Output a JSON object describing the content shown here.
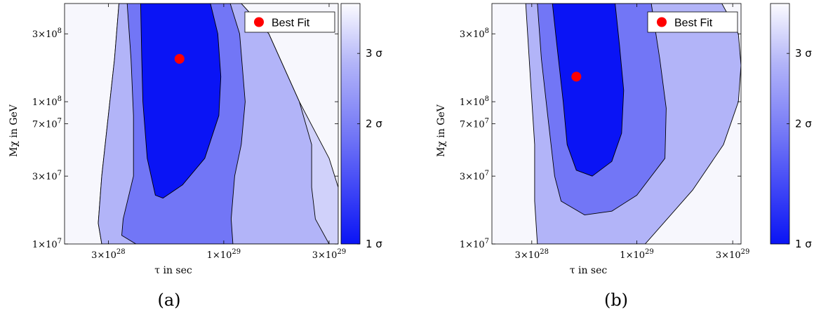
{
  "colors": {
    "level_1": "#0a14f5",
    "level_2": "#7276f6",
    "level_3": "#b2b4f8",
    "level_4": "#d0d1fa",
    "background": "#f7f7fd",
    "best_fit": "#ff0000"
  },
  "chart_data": [
    {
      "type": "contour",
      "caption": "(a)",
      "xlabel": "τ in sec",
      "ylabel": "Mχ in GeV",
      "x_scale": "log",
      "y_scale": "log",
      "xlim": [
        1.9e+28,
        3.3e+29
      ],
      "ylim": [
        10000000.0,
        490000000.0
      ],
      "x_ticks": [
        {
          "value": 3e+28,
          "mantissa": "3×10",
          "exp": "28"
        },
        {
          "value": 1e+29,
          "mantissa": "1×10",
          "exp": "29"
        },
        {
          "value": 3e+29,
          "mantissa": "3×10",
          "exp": "29"
        }
      ],
      "y_ticks": [
        {
          "value": 10000000.0,
          "mantissa": "1×10",
          "exp": "7"
        },
        {
          "value": 30000000.0,
          "mantissa": "3×10",
          "exp": "7"
        },
        {
          "value": 70000000.0,
          "mantissa": "7×10",
          "exp": "7"
        },
        {
          "value": 100000000.0,
          "mantissa": "1×10",
          "exp": "8"
        },
        {
          "value": 300000000.0,
          "mantissa": "3×10",
          "exp": "8"
        }
      ],
      "colorbar": {
        "labels": [
          "1 σ",
          "2 σ",
          "3 σ"
        ],
        "values": [
          1,
          2,
          3
        ],
        "range": [
          1,
          4
        ]
      },
      "legend": {
        "label": "Best Fit",
        "position": "top-right"
      },
      "best_fit": {
        "x": 6.3e+28,
        "y": 200000000.0
      },
      "contours": [
        {
          "level": 4,
          "points": [
            [
              2.8e+28,
              10000000.0
            ],
            [
              2.7e+28,
              14000000.0
            ],
            [
              2.8e+28,
              30000000.0
            ],
            [
              3e+28,
              80000000.0
            ],
            [
              3.2e+28,
              200000000.0
            ],
            [
              3.35e+28,
              490000000.0
            ],
            [
              1.2e+29,
              490000000.0
            ],
            [
              1.6e+29,
              300000000.0
            ],
            [
              2.2e+29,
              100000000.0
            ],
            [
              3e+29,
              40000000.0
            ],
            [
              3.3e+29,
              25000000.0
            ],
            [
              3.3e+29,
              10000000.0
            ]
          ]
        },
        {
          "level": 3,
          "points": [
            [
              2.8e+28,
              10000000.0
            ],
            [
              2.7e+28,
              14000000.0
            ],
            [
              2.8e+28,
              30000000.0
            ],
            [
              3e+28,
              80000000.0
            ],
            [
              3.2e+28,
              200000000.0
            ],
            [
              3.35e+28,
              490000000.0
            ],
            [
              1.2e+29,
              490000000.0
            ],
            [
              1.6e+29,
              300000000.0
            ],
            [
              2.2e+29,
              100000000.0
            ],
            [
              2.5e+29,
              50000000.0
            ],
            [
              2.5e+29,
              25000000.0
            ],
            [
              2.6e+29,
              15000000.0
            ],
            [
              3e+29,
              10000000.0
            ]
          ]
        },
        {
          "level": 2,
          "points": [
            [
              1.1e+29,
              10000000.0
            ],
            [
              4e+28,
              10000000.0
            ],
            [
              3.45e+28,
              11500000.0
            ],
            [
              3.5e+28,
              15000000.0
            ],
            [
              3.9e+28,
              30000000.0
            ],
            [
              3.9e+28,
              80000000.0
            ],
            [
              3.8e+28,
              200000000.0
            ],
            [
              3.65e+28,
              490000000.0
            ],
            [
              1.07e+29,
              490000000.0
            ],
            [
              1.18e+29,
              300000000.0
            ],
            [
              1.25e+29,
              100000000.0
            ],
            [
              1.2e+29,
              50000000.0
            ],
            [
              1.12e+29,
              30000000.0
            ],
            [
              1.08e+29,
              15000000.0
            ]
          ]
        },
        {
          "level": 1,
          "points": [
            [
              4.9e+28,
              22000000.0
            ],
            [
              4.5e+28,
              40000000.0
            ],
            [
              4.3e+28,
              100000000.0
            ],
            [
              4.25e+28,
              200000000.0
            ],
            [
              4.2e+28,
              490000000.0
            ],
            [
              8.7e+28,
              490000000.0
            ],
            [
              9.4e+28,
              300000000.0
            ],
            [
              9.7e+28,
              150000000.0
            ],
            [
              9.5e+28,
              80000000.0
            ],
            [
              8.2e+28,
              40000000.0
            ],
            [
              6.5e+28,
              26000000.0
            ],
            [
              5.3e+28,
              21000000.0
            ]
          ]
        }
      ]
    },
    {
      "type": "contour",
      "caption": "(b)",
      "xlabel": "τ in sec",
      "ylabel": "Mχ in GeV",
      "x_scale": "log",
      "y_scale": "log",
      "xlim": [
        1.9e+28,
        3.3e+29
      ],
      "ylim": [
        10000000.0,
        490000000.0
      ],
      "x_ticks": [
        {
          "value": 3e+28,
          "mantissa": "3×10",
          "exp": "28"
        },
        {
          "value": 1e+29,
          "mantissa": "1×10",
          "exp": "29"
        },
        {
          "value": 3e+29,
          "mantissa": "3×10",
          "exp": "29"
        }
      ],
      "y_ticks": [
        {
          "value": 10000000.0,
          "mantissa": "1×10",
          "exp": "7"
        },
        {
          "value": 30000000.0,
          "mantissa": "3×10",
          "exp": "7"
        },
        {
          "value": 70000000.0,
          "mantissa": "7×10",
          "exp": "7"
        },
        {
          "value": 100000000.0,
          "mantissa": "1×10",
          "exp": "8"
        },
        {
          "value": 300000000.0,
          "mantissa": "3×10",
          "exp": "8"
        }
      ],
      "colorbar": {
        "labels": [
          "1 σ",
          "2 σ",
          "3 σ"
        ],
        "values": [
          1,
          2,
          3
        ],
        "range": [
          1,
          4
        ]
      },
      "legend": {
        "label": "Best Fit",
        "position": "top-right"
      },
      "best_fit": {
        "x": 5e+28,
        "y": 150000000.0
      },
      "contours": [
        {
          "level": 3,
          "points": [
            [
              3.2e+28,
              10000000.0
            ],
            [
              3.1e+28,
              20000000.0
            ],
            [
              3.1e+28,
              50000000.0
            ],
            [
              2.95e+28,
              150000000.0
            ],
            [
              2.8e+28,
              490000000.0
            ],
            [
              2.65e+29,
              490000000.0
            ],
            [
              3.2e+29,
              300000000.0
            ],
            [
              3.3e+29,
              180000000.0
            ],
            [
              3.2e+29,
              100000000.0
            ],
            [
              2.7e+29,
              50000000.0
            ],
            [
              1.9e+29,
              24000000.0
            ],
            [
              1.1e+29,
              10000000.0
            ]
          ]
        },
        {
          "level": 2,
          "points": [
            [
              3.9e+28,
              30000000.0
            ],
            [
              4.2e+28,
              20000000.0
            ],
            [
              5.5e+28,
              16000000.0
            ],
            [
              7.5e+28,
              17000000.0
            ],
            [
              1e+29,
              22000000.0
            ],
            [
              1.38e+29,
              40000000.0
            ],
            [
              1.4e+29,
              90000000.0
            ],
            [
              1.3e+29,
              200000000.0
            ],
            [
              1.18e+29,
              490000000.0
            ],
            [
              3.2e+28,
              490000000.0
            ],
            [
              3.35e+28,
              200000000.0
            ],
            [
              3.6e+28,
              80000000.0
            ]
          ]
        },
        {
          "level": 1,
          "points": [
            [
              4.3e+28,
              100000000.0
            ],
            [
              4.5e+28,
              50000000.0
            ],
            [
              5e+28,
              33000000.0
            ],
            [
              6e+28,
              30000000.0
            ],
            [
              7.5e+28,
              38000000.0
            ],
            [
              8.4e+28,
              60000000.0
            ],
            [
              8.6e+28,
              120000000.0
            ],
            [
              8.2e+28,
              250000000.0
            ],
            [
              7.8e+28,
              490000000.0
            ],
            [
              3.8e+28,
              490000000.0
            ],
            [
              4e+28,
              250000000.0
            ]
          ]
        }
      ]
    }
  ]
}
